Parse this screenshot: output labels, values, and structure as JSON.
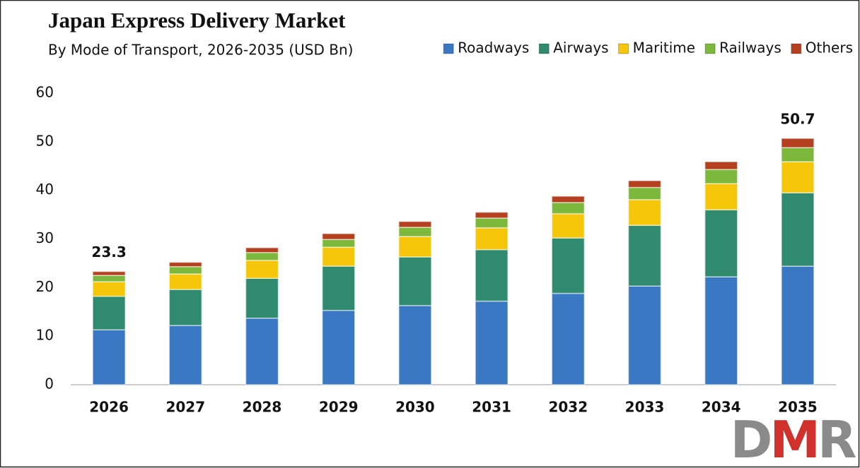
{
  "chart_data": {
    "type": "stacked_bar",
    "title": "Japan Express Delivery Market",
    "subtitle": "By Mode of Transport, 2026-2035 (USD Bn)",
    "categories": [
      "2026",
      "2027",
      "2028",
      "2029",
      "2030",
      "2031",
      "2032",
      "2033",
      "2034",
      "2035"
    ],
    "series": [
      {
        "name": "Roadways",
        "color": "#3a78c4",
        "values": [
          11.3,
          12.2,
          13.7,
          15.3,
          16.3,
          17.2,
          18.8,
          20.3,
          22.2,
          24.4
        ]
      },
      {
        "name": "Airways",
        "color": "#2f8a6e",
        "values": [
          6.9,
          7.4,
          8.2,
          9.1,
          10.0,
          10.6,
          11.4,
          12.5,
          13.8,
          15.1
        ]
      },
      {
        "name": "Maritime",
        "color": "#f5c60a",
        "values": [
          3.0,
          3.2,
          3.7,
          3.9,
          4.2,
          4.5,
          5.0,
          5.3,
          5.4,
          6.4
        ]
      },
      {
        "name": "Railways",
        "color": "#7cb83c",
        "values": [
          1.3,
          1.5,
          1.6,
          1.6,
          1.9,
          2.0,
          2.3,
          2.5,
          2.9,
          2.9
        ]
      },
      {
        "name": "Others",
        "color": "#b5401f",
        "values": [
          0.8,
          0.9,
          1.0,
          1.2,
          1.2,
          1.2,
          1.3,
          1.4,
          1.6,
          1.9
        ]
      }
    ],
    "totals": [
      23.3,
      null,
      null,
      null,
      null,
      null,
      null,
      null,
      null,
      50.7
    ],
    "ylim": [
      0,
      60
    ],
    "yticks": [
      0,
      10,
      20,
      30,
      40,
      50,
      60
    ],
    "grid": false,
    "legend": "top-right",
    "logo": "DMR"
  }
}
